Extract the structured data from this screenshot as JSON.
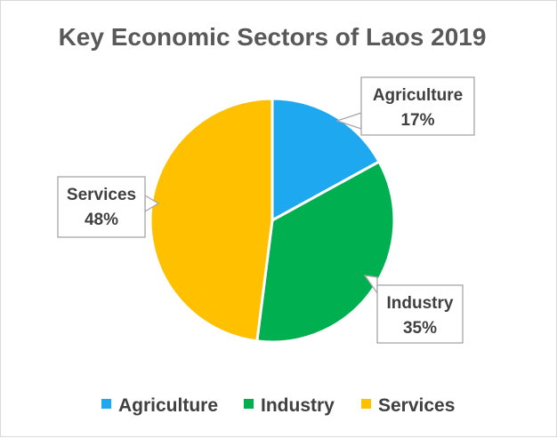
{
  "chart_data": {
    "type": "pie",
    "title": "Key Economic Sectors of Laos 2019",
    "categories": [
      "Agriculture",
      "Industry",
      "Services"
    ],
    "values": [
      17,
      35,
      48
    ],
    "data_labels": [
      "17%",
      "35%",
      "48%"
    ],
    "colors": [
      "#1ea8f0",
      "#00b050",
      "#ffc000"
    ],
    "legend": {
      "placement": "bottom",
      "items": [
        "Agriculture",
        "Industry",
        "Services"
      ]
    }
  }
}
